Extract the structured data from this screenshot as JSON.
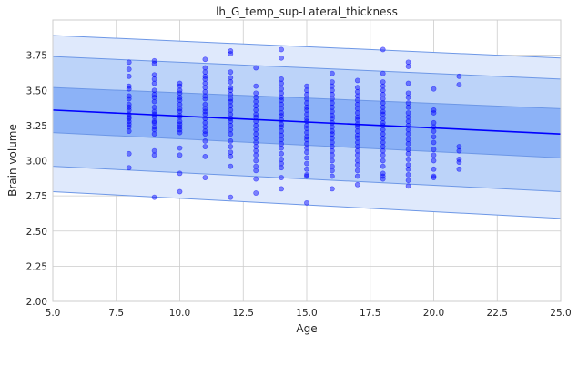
{
  "chart_data": {
    "type": "scatter",
    "title": "lh_G_temp_sup-Lateral_thickness",
    "xlabel": "Age",
    "ylabel": "Brain volume",
    "xlim": [
      5.0,
      25.0
    ],
    "ylim": [
      2.0,
      4.0
    ],
    "xticks": [
      "5.0",
      "7.5",
      "10.0",
      "12.5",
      "15.0",
      "17.5",
      "20.0",
      "22.5",
      "25.0"
    ],
    "yticks": [
      "2.00",
      "2.25",
      "2.50",
      "2.75",
      "3.00",
      "3.25",
      "3.50",
      "3.75"
    ],
    "grid": true,
    "colors": {
      "points": "#0000ff",
      "mean_line": "#0000ff",
      "band_inner": "#8cb2f7",
      "band_middle": "#bcd3f9",
      "band_outer": "#dfe9fc",
      "band_edge": "#6d97e6"
    },
    "mean_line": {
      "x": [
        5.0,
        25.0
      ],
      "y": [
        3.36,
        3.19
      ]
    },
    "bands": [
      {
        "level": "outer",
        "upper": [
          3.89,
          3.73
        ],
        "lower": [
          2.78,
          2.59
        ]
      },
      {
        "level": "middle",
        "upper": [
          3.74,
          3.58
        ],
        "lower": [
          2.96,
          2.78
        ]
      },
      {
        "level": "inner",
        "upper": [
          3.52,
          3.37
        ],
        "lower": [
          3.2,
          3.02
        ]
      }
    ],
    "points": [
      {
        "age": 8,
        "values": [
          3.7,
          3.65,
          3.6,
          3.53,
          3.51,
          3.46,
          3.44,
          3.4,
          3.38,
          3.36,
          3.33,
          3.31,
          3.3,
          3.28,
          3.26,
          3.24,
          3.21,
          3.05,
          2.95
        ]
      },
      {
        "age": 9,
        "values": [
          3.71,
          3.69,
          3.61,
          3.58,
          3.55,
          3.5,
          3.47,
          3.45,
          3.42,
          3.38,
          3.35,
          3.33,
          3.31,
          3.28,
          3.27,
          3.24,
          3.22,
          3.19,
          3.07,
          3.04,
          2.74
        ]
      },
      {
        "age": 10,
        "values": [
          3.55,
          3.53,
          3.5,
          3.48,
          3.45,
          3.43,
          3.4,
          3.37,
          3.35,
          3.32,
          3.31,
          3.28,
          3.26,
          3.24,
          3.22,
          3.2,
          3.09,
          3.04,
          2.91,
          2.78
        ]
      },
      {
        "age": 11,
        "values": [
          3.72,
          3.66,
          3.63,
          3.6,
          3.58,
          3.55,
          3.52,
          3.49,
          3.46,
          3.44,
          3.4,
          3.37,
          3.35,
          3.33,
          3.3,
          3.27,
          3.24,
          3.21,
          3.19,
          3.14,
          3.1,
          3.03,
          2.88
        ]
      },
      {
        "age": 12,
        "values": [
          3.78,
          3.76,
          3.63,
          3.59,
          3.56,
          3.52,
          3.5,
          3.47,
          3.44,
          3.42,
          3.39,
          3.36,
          3.33,
          3.3,
          3.28,
          3.25,
          3.22,
          3.19,
          3.14,
          3.1,
          3.06,
          3.03,
          2.96,
          2.74
        ]
      },
      {
        "age": 13,
        "values": [
          3.66,
          3.53,
          3.48,
          3.45,
          3.42,
          3.39,
          3.36,
          3.33,
          3.31,
          3.28,
          3.25,
          3.22,
          3.19,
          3.16,
          3.13,
          3.1,
          3.07,
          3.04,
          3.0,
          2.96,
          2.93,
          2.87,
          2.77
        ]
      },
      {
        "age": 14,
        "values": [
          3.79,
          3.73,
          3.58,
          3.55,
          3.51,
          3.48,
          3.45,
          3.43,
          3.4,
          3.37,
          3.34,
          3.32,
          3.29,
          3.26,
          3.24,
          3.21,
          3.18,
          3.15,
          3.12,
          3.09,
          3.05,
          3.01,
          2.98,
          2.95,
          2.88,
          2.8
        ]
      },
      {
        "age": 15,
        "values": [
          3.53,
          3.5,
          3.47,
          3.44,
          3.41,
          3.38,
          3.36,
          3.33,
          3.3,
          3.28,
          3.25,
          3.23,
          3.2,
          3.17,
          3.15,
          3.12,
          3.09,
          3.06,
          3.02,
          2.98,
          2.94,
          2.9,
          2.89,
          2.7
        ]
      },
      {
        "age": 16,
        "values": [
          3.62,
          3.56,
          3.53,
          3.5,
          3.47,
          3.44,
          3.41,
          3.38,
          3.35,
          3.32,
          3.3,
          3.27,
          3.24,
          3.21,
          3.19,
          3.16,
          3.13,
          3.1,
          3.07,
          3.04,
          3.0,
          2.96,
          2.93,
          2.89,
          2.8
        ]
      },
      {
        "age": 17,
        "values": [
          3.57,
          3.52,
          3.49,
          3.46,
          3.43,
          3.4,
          3.37,
          3.34,
          3.31,
          3.29,
          3.26,
          3.24,
          3.21,
          3.18,
          3.16,
          3.13,
          3.1,
          3.07,
          3.04,
          3.0,
          2.97,
          2.93,
          2.89,
          2.83
        ]
      },
      {
        "age": 18,
        "values": [
          3.79,
          3.62,
          3.56,
          3.53,
          3.5,
          3.47,
          3.44,
          3.41,
          3.38,
          3.35,
          3.33,
          3.3,
          3.27,
          3.25,
          3.22,
          3.19,
          3.16,
          3.13,
          3.1,
          3.07,
          3.04,
          3.0,
          2.96,
          2.91,
          2.89,
          2.87
        ]
      },
      {
        "age": 19,
        "values": [
          3.7,
          3.67,
          3.55,
          3.48,
          3.45,
          3.41,
          3.38,
          3.34,
          3.31,
          3.28,
          3.25,
          3.22,
          3.19,
          3.15,
          3.12,
          3.08,
          3.05,
          3.01,
          2.97,
          2.94,
          2.9,
          2.86,
          2.82
        ]
      },
      {
        "age": 20,
        "values": [
          3.51,
          3.36,
          3.34,
          3.27,
          3.24,
          3.21,
          3.17,
          3.13,
          3.08,
          3.04,
          3.0,
          2.94,
          2.89,
          2.88
        ]
      },
      {
        "age": 21,
        "values": [
          3.6,
          3.54,
          3.1,
          3.07,
          3.01,
          2.99,
          2.94
        ]
      }
    ]
  }
}
